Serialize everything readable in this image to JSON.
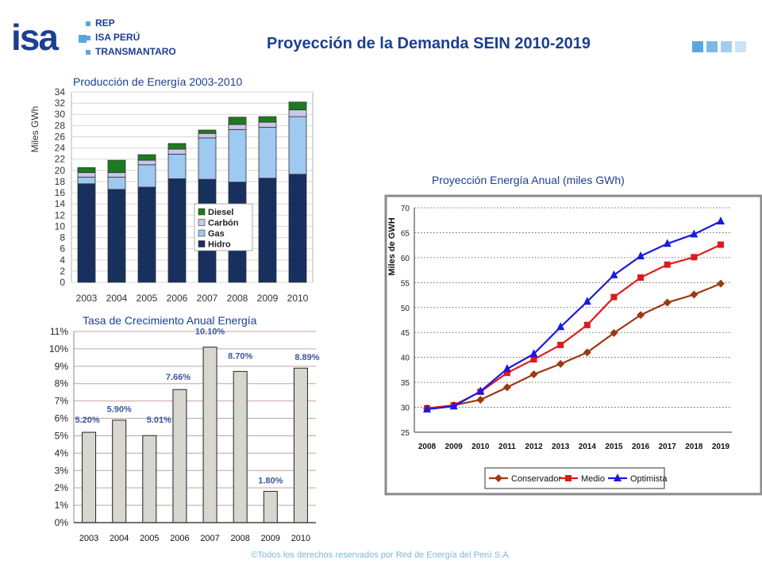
{
  "header": {
    "logo_text": "isa",
    "brands": [
      "REP",
      "ISA PERÚ",
      "TRANSMANTARO"
    ],
    "title": "Proyección de la Demanda SEIN 2010-2019"
  },
  "footer": "©Todos los derechos reservados por Red de Energía del Perú S.A.",
  "chart_data": [
    {
      "type": "bar",
      "stacked": true,
      "title": "Producción de Energía 2003-2010",
      "ylabel": "Miles GWh",
      "ylim": [
        0,
        34
      ],
      "yticks": [
        "0",
        "2",
        "4",
        "6",
        "8",
        "10",
        "12",
        "14",
        "16",
        "18",
        "20",
        "22",
        "24",
        "26",
        "28",
        "30",
        "32",
        "34"
      ],
      "categories": [
        "2003",
        "2004",
        "2005",
        "2006",
        "2007",
        "2008",
        "2009",
        "2010"
      ],
      "series": [
        {
          "name": "Hidro",
          "color": "#17305e",
          "values": [
            17.6,
            16.6,
            17.0,
            18.5,
            18.4,
            17.9,
            18.6,
            19.3
          ]
        },
        {
          "name": "Gas",
          "color": "#9ec9f0",
          "values": [
            1.2,
            2.2,
            4.0,
            4.4,
            7.4,
            9.4,
            9.1,
            10.3
          ]
        },
        {
          "name": "Carbón",
          "color": "#c8c8ea",
          "values": [
            0.8,
            0.8,
            0.8,
            0.9,
            0.8,
            0.9,
            0.9,
            1.2
          ]
        },
        {
          "name": "Diesel",
          "color": "#1e7a1e",
          "values": [
            0.9,
            2.2,
            1.0,
            1.0,
            0.6,
            1.3,
            1.0,
            1.4
          ]
        }
      ],
      "legend_position": "inside-right",
      "legend_order": [
        "Diesel",
        "Carbón",
        "Gas",
        "Hidro"
      ],
      "grid": "horizontal"
    },
    {
      "type": "bar",
      "title": "Tasa de Crecimiento Anual Energía",
      "ylim": [
        0,
        11
      ],
      "yticks": [
        "0%",
        "1%",
        "2%",
        "3%",
        "4%",
        "5%",
        "6%",
        "7%",
        "8%",
        "9%",
        "10%",
        "11%"
      ],
      "categories": [
        "2003",
        "2004",
        "2005",
        "2006",
        "2007",
        "2008",
        "2009",
        "2010"
      ],
      "values": [
        5.2,
        5.9,
        5.01,
        7.66,
        10.1,
        8.7,
        1.8,
        8.89
      ],
      "data_labels": [
        "5.20%",
        "5.90%",
        "5.01%",
        "7.66%",
        "10.10%",
        "8.70%",
        "1.80%",
        "8.89%"
      ],
      "bar_color": "#d7d7d0",
      "label_color": "#3a57a0",
      "grid": "horizontal"
    },
    {
      "type": "line",
      "title": "Proyección Energía Anual (miles GWh)",
      "ylabel": "Miles de GWH",
      "ylim": [
        25,
        70
      ],
      "yticks": [
        "25",
        "30",
        "35",
        "40",
        "45",
        "50",
        "55",
        "60",
        "65",
        "70"
      ],
      "x": [
        "2008",
        "2009",
        "2010",
        "2011",
        "2012",
        "2013",
        "2014",
        "2015",
        "2016",
        "2017",
        "2018",
        "2019"
      ],
      "series": [
        {
          "name": "Conservador",
          "color": "#9b3a12",
          "marker": "diamond",
          "values": [
            29.8,
            30.4,
            31.5,
            34.0,
            36.6,
            38.7,
            41.0,
            44.9,
            48.5,
            51.0,
            52.6,
            54.8
          ]
        },
        {
          "name": "Medio",
          "color": "#e01a1a",
          "marker": "square",
          "values": [
            29.8,
            30.4,
            33.1,
            36.9,
            39.6,
            42.5,
            46.5,
            52.1,
            56.0,
            58.6,
            60.1,
            62.6
          ]
        },
        {
          "name": "Optimista",
          "color": "#1a1ae0",
          "marker": "triangle",
          "values": [
            29.6,
            30.2,
            33.2,
            37.7,
            40.7,
            46.1,
            51.2,
            56.5,
            60.3,
            62.8,
            64.7,
            67.3
          ]
        }
      ],
      "legend_position": "bottom",
      "grid": "horizontal-dotted"
    }
  ]
}
